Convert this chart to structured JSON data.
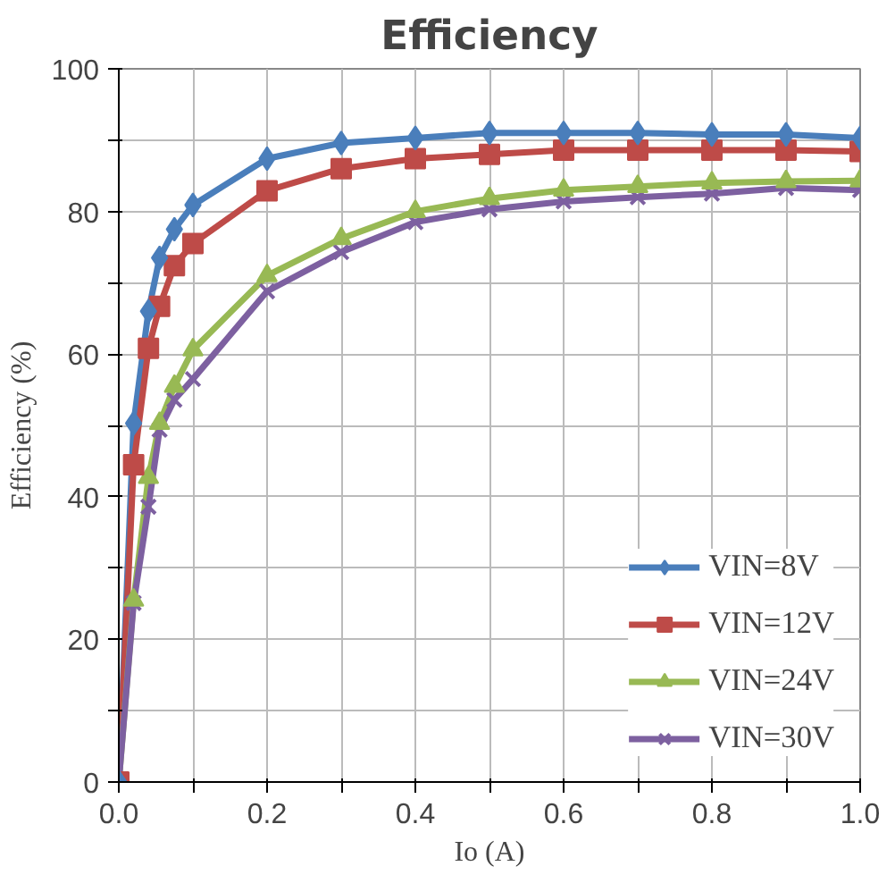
{
  "chart_data": {
    "type": "line",
    "title": "Efficiency",
    "xlabel": "Io (A)",
    "ylabel": "Efficiency (%)",
    "x": [
      0,
      0.02,
      0.04,
      0.055,
      0.075,
      0.1,
      0.2,
      0.3,
      0.4,
      0.5,
      0.6,
      0.7,
      0.8,
      0.9,
      1.0
    ],
    "series": [
      {
        "name": "VIN=8V",
        "color": "#4a7ebb",
        "marker": "diamond",
        "values": [
          0,
          50.3,
          66,
          73.5,
          77.5,
          80.9,
          87.4,
          89.6,
          90.3,
          91,
          91,
          91,
          90.8,
          90.8,
          90.3
        ]
      },
      {
        "name": "VIN=12V",
        "color": "#be4b48",
        "marker": "square",
        "values": [
          0,
          44.5,
          60.8,
          66.7,
          72.4,
          75.5,
          82.9,
          86,
          87.4,
          88,
          88.6,
          88.6,
          88.6,
          88.6,
          88.4
        ]
      },
      {
        "name": "VIN=24V",
        "color": "#98b954",
        "marker": "triangle",
        "values": [
          0,
          25.5,
          42.7,
          50.3,
          55.5,
          60.6,
          71,
          76.2,
          80,
          81.8,
          83,
          83.5,
          84,
          84.2,
          84.3
        ]
      },
      {
        "name": "VIN=30V",
        "color": "#7d60a0",
        "marker": "cross",
        "values": [
          0,
          25.1,
          38.6,
          49.4,
          53.6,
          56.5,
          68.8,
          74.3,
          78.5,
          80.3,
          81.4,
          82,
          82.5,
          83.3,
          83
        ]
      }
    ],
    "xlim": [
      0,
      1.0
    ],
    "ylim": [
      0,
      100
    ],
    "xticks": [
      {
        "value": 0,
        "label": "0.0"
      },
      {
        "value": 0.1,
        "label": null
      },
      {
        "value": 0.2,
        "label": "0.2"
      },
      {
        "value": 0.3,
        "label": null
      },
      {
        "value": 0.4,
        "label": "0.4"
      },
      {
        "value": 0.5,
        "label": null
      },
      {
        "value": 0.6,
        "label": "0.6"
      },
      {
        "value": 0.7,
        "label": null
      },
      {
        "value": 0.8,
        "label": "0.8"
      },
      {
        "value": 0.9,
        "label": null
      },
      {
        "value": 1.0,
        "label": "1.0"
      }
    ],
    "yticks": [
      0,
      {
        "value": 10,
        "label": null
      },
      20,
      {
        "value": 30,
        "label": null
      },
      40,
      {
        "value": 50,
        "label": null
      },
      60,
      {
        "value": 70,
        "label": null
      },
      80,
      {
        "value": 90,
        "label": null
      },
      100
    ],
    "grid": true,
    "legend": "bottom right",
    "line_style": "solid"
  }
}
